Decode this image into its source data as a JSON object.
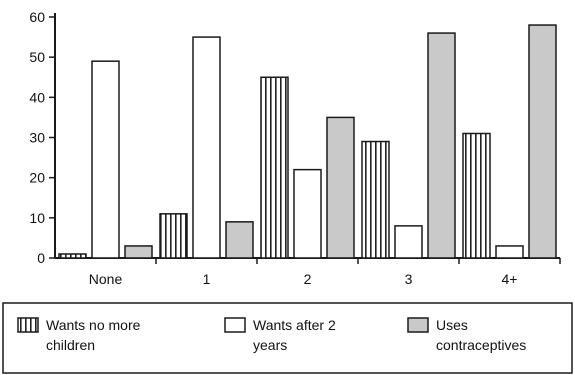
{
  "chart_data": {
    "type": "bar",
    "categories": [
      "None",
      "1",
      "2",
      "3",
      "4+"
    ],
    "series": [
      {
        "name": "Wants no more children",
        "name_lines": [
          "Wants no more",
          "children"
        ],
        "pattern": "vertical-stripes",
        "values": [
          1,
          11,
          45,
          29,
          31
        ]
      },
      {
        "name": "Wants after 2 years",
        "name_lines": [
          "Wants after 2",
          "years"
        ],
        "pattern": "blank",
        "values": [
          49,
          55,
          22,
          8,
          3
        ]
      },
      {
        "name": "Uses contraceptives",
        "name_lines": [
          "Uses",
          "contraceptives"
        ],
        "pattern": "gray",
        "values": [
          3,
          9,
          35,
          56,
          58
        ]
      }
    ],
    "y_ticks": [
      0,
      10,
      20,
      30,
      40,
      50,
      60
    ],
    "ylim": [
      0,
      60
    ],
    "title": "",
    "xlabel": "",
    "ylabel": "",
    "grid": false,
    "legend_position": "bottom",
    "colors": {
      "gray_fill": "#c9c9c9",
      "stripe": "#222222",
      "axis": "#1a1a1a"
    }
  }
}
